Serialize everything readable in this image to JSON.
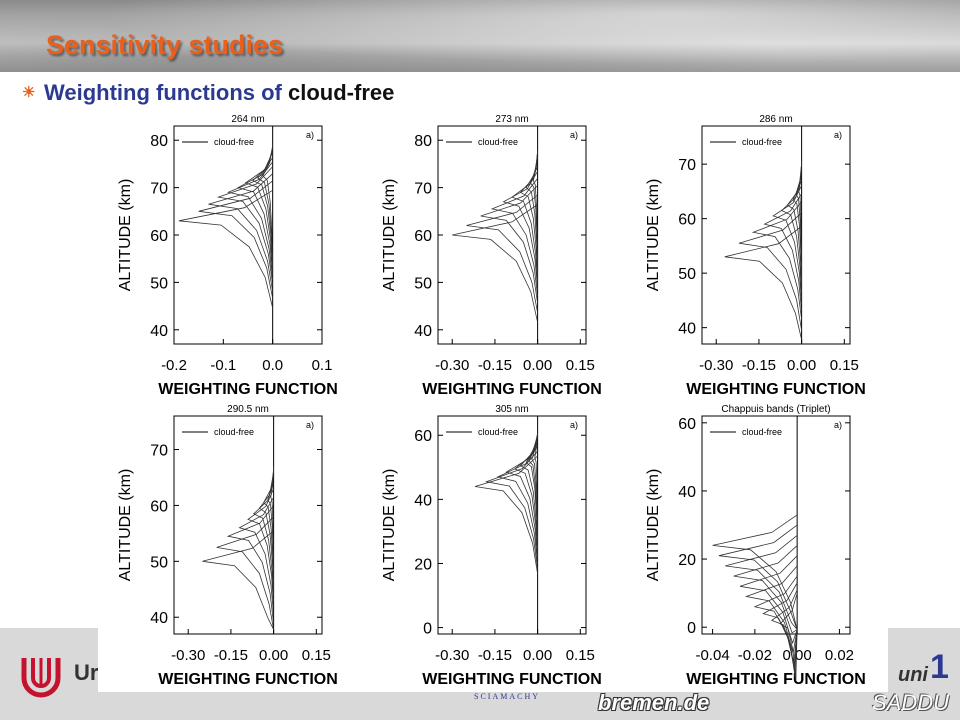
{
  "slide": {
    "title": "Sensitivity studies",
    "bullet_prefix": "Weighting functions of ",
    "bullet_emphasis": "cloud-free",
    "footer": {
      "university_partial": "Ur",
      "unit_partial": "uni",
      "slide_number": "1",
      "bremen": "bremen.de",
      "saddu": "SADDU",
      "sciamachy": "SCIAMACHY"
    },
    "colors": {
      "title": "#e8601c",
      "bullet_text": "#2b3990",
      "banner": "#a8a8a8"
    }
  },
  "chart_data": [
    {
      "type": "line",
      "title": "264 nm",
      "xlabel": "WEIGHTING FUNCTION",
      "ylabel": "ALTITUDE (km)",
      "xlim": [
        -0.2,
        0.1
      ],
      "ylim": [
        37,
        83
      ],
      "xticks": [
        "-0.2",
        "-0.1",
        "0.0",
        "0.1"
      ],
      "yticks": [
        "40",
        "50",
        "60",
        "70",
        "80"
      ],
      "legend": "cloud-free",
      "panel_label": "a)",
      "peaks": [
        -0.19,
        -0.15,
        -0.13,
        -0.11,
        -0.09,
        -0.07,
        -0.055,
        -0.04,
        -0.03,
        -0.02
      ],
      "peak_alt": [
        63,
        65,
        66.5,
        68,
        69,
        70,
        71,
        71.5,
        72,
        72.5
      ]
    },
    {
      "type": "line",
      "title": "273 nm",
      "xlabel": "WEIGHTING FUNCTION",
      "ylabel": "ALTITUDE (km)",
      "xlim": [
        -0.35,
        0.17
      ],
      "ylim": [
        37,
        83
      ],
      "xticks": [
        "-0.30",
        "-0.15",
        "0.00",
        "0.15"
      ],
      "yticks": [
        "40",
        "50",
        "60",
        "70",
        "80"
      ],
      "legend": "cloud-free",
      "panel_label": "a)",
      "peaks": [
        -0.3,
        -0.25,
        -0.2,
        -0.16,
        -0.12,
        -0.09,
        -0.06,
        -0.04,
        -0.025,
        -0.015
      ],
      "peak_alt": [
        60,
        62,
        64,
        65.5,
        67,
        68,
        69,
        70,
        71,
        71.5
      ]
    },
    {
      "type": "line",
      "title": "286 nm",
      "xlabel": "WEIGHTING FUNCTION",
      "ylabel": "ALTITUDE (km)",
      "xlim": [
        -0.35,
        0.17
      ],
      "ylim": [
        37,
        77
      ],
      "xticks": [
        "-0.30",
        "-0.15",
        "0.00",
        "0.15"
      ],
      "yticks": [
        "40",
        "50",
        "60",
        "70"
      ],
      "legend": "cloud-free",
      "panel_label": "a)",
      "peaks": [
        -0.27,
        -0.22,
        -0.17,
        -0.13,
        -0.1,
        -0.07,
        -0.05,
        -0.03,
        -0.02,
        -0.01
      ],
      "peak_alt": [
        53,
        55.5,
        57.5,
        59,
        60.5,
        61.5,
        62.5,
        63.5,
        64.5,
        65
      ]
    },
    {
      "type": "line",
      "title": "290.5 nm",
      "xlabel": "WEIGHTING FUNCTION",
      "ylabel": "ALTITUDE (km)",
      "xlim": [
        -0.35,
        0.17
      ],
      "ylim": [
        37,
        76
      ],
      "xticks": [
        "-0.30",
        "-0.15",
        "0.00",
        "0.15"
      ],
      "yticks": [
        "40",
        "50",
        "60",
        "70"
      ],
      "legend": "cloud-free",
      "panel_label": "a)",
      "peaks": [
        -0.25,
        -0.2,
        -0.16,
        -0.12,
        -0.09,
        -0.07,
        -0.05,
        -0.035,
        -0.02,
        -0.01
      ],
      "peak_alt": [
        50,
        52.5,
        54.5,
        56,
        57.5,
        58.5,
        59.5,
        60.5,
        61,
        61.5
      ]
    },
    {
      "type": "line",
      "title": "305 nm",
      "xlabel": "WEIGHTING FUNCTION",
      "ylabel": "ALTITUDE (km)",
      "xlim": [
        -0.35,
        0.17
      ],
      "ylim": [
        -2,
        66
      ],
      "xticks": [
        "-0.30",
        "-0.15",
        "0.00",
        "0.15"
      ],
      "yticks": [
        "0",
        "20",
        "40",
        "60"
      ],
      "legend": "cloud-free",
      "panel_label": "a)",
      "peaks": [
        -0.22,
        -0.18,
        -0.14,
        -0.11,
        -0.08,
        -0.06,
        -0.04,
        -0.03,
        -0.02,
        -0.01
      ],
      "peak_alt": [
        44,
        45.5,
        47,
        48.5,
        49.5,
        50.5,
        51.5,
        52,
        52.5,
        53
      ]
    },
    {
      "type": "line",
      "title": "Chappuis bands (Triplet)",
      "xlabel": "WEIGHTING FUNCTION",
      "ylabel": "ALTITUDE (km)",
      "xlim": [
        -0.045,
        0.025
      ],
      "ylim": [
        -2,
        62
      ],
      "xticks": [
        "-0.04",
        "-0.02",
        "0.00",
        "0.02"
      ],
      "yticks": [
        "0",
        "20",
        "40",
        "60"
      ],
      "legend": "cloud-free",
      "panel_label": "a)",
      "peaks": [
        -0.04,
        -0.037,
        -0.034,
        -0.03,
        -0.027,
        -0.024,
        -0.02,
        -0.016,
        -0.012,
        -0.008
      ],
      "peak_alt": [
        24,
        21,
        18,
        15,
        12,
        9,
        6,
        4,
        2,
        1
      ]
    }
  ]
}
